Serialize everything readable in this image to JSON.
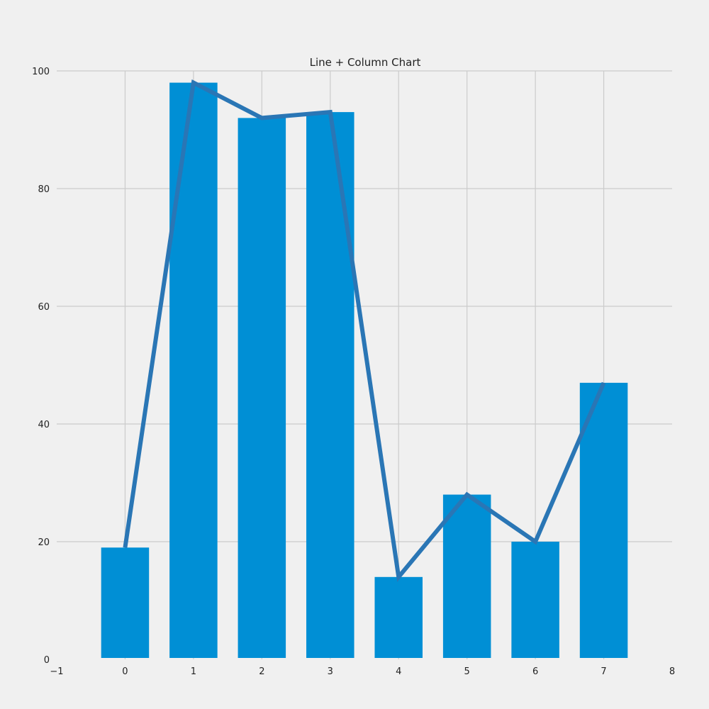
{
  "chart_data": {
    "type": "bar+line",
    "title": "Line + Column Chart",
    "x": [
      0,
      1,
      2,
      3,
      4,
      5,
      6,
      7
    ],
    "bar_values": [
      19,
      98,
      92,
      93,
      14,
      28,
      20,
      47
    ],
    "line_values": [
      19,
      98,
      92,
      93,
      14,
      28,
      20,
      47
    ],
    "xlim": [
      -1,
      8
    ],
    "ylim": [
      0,
      100
    ],
    "x_ticks": [
      "−1",
      "0",
      "1",
      "2",
      "3",
      "4",
      "5",
      "6",
      "7",
      "8"
    ],
    "x_tick_values": [
      -1,
      0,
      1,
      2,
      3,
      4,
      5,
      6,
      7,
      8
    ],
    "y_ticks": [
      "0",
      "20",
      "40",
      "60",
      "80",
      "100"
    ],
    "y_tick_values": [
      0,
      20,
      40,
      60,
      80,
      100
    ],
    "grid": true,
    "colors": {
      "background": "#f0f0f0",
      "bar": "#008fd5",
      "line": "#2a76b5",
      "grid": "#cbcbcb",
      "text": "#222222"
    }
  }
}
